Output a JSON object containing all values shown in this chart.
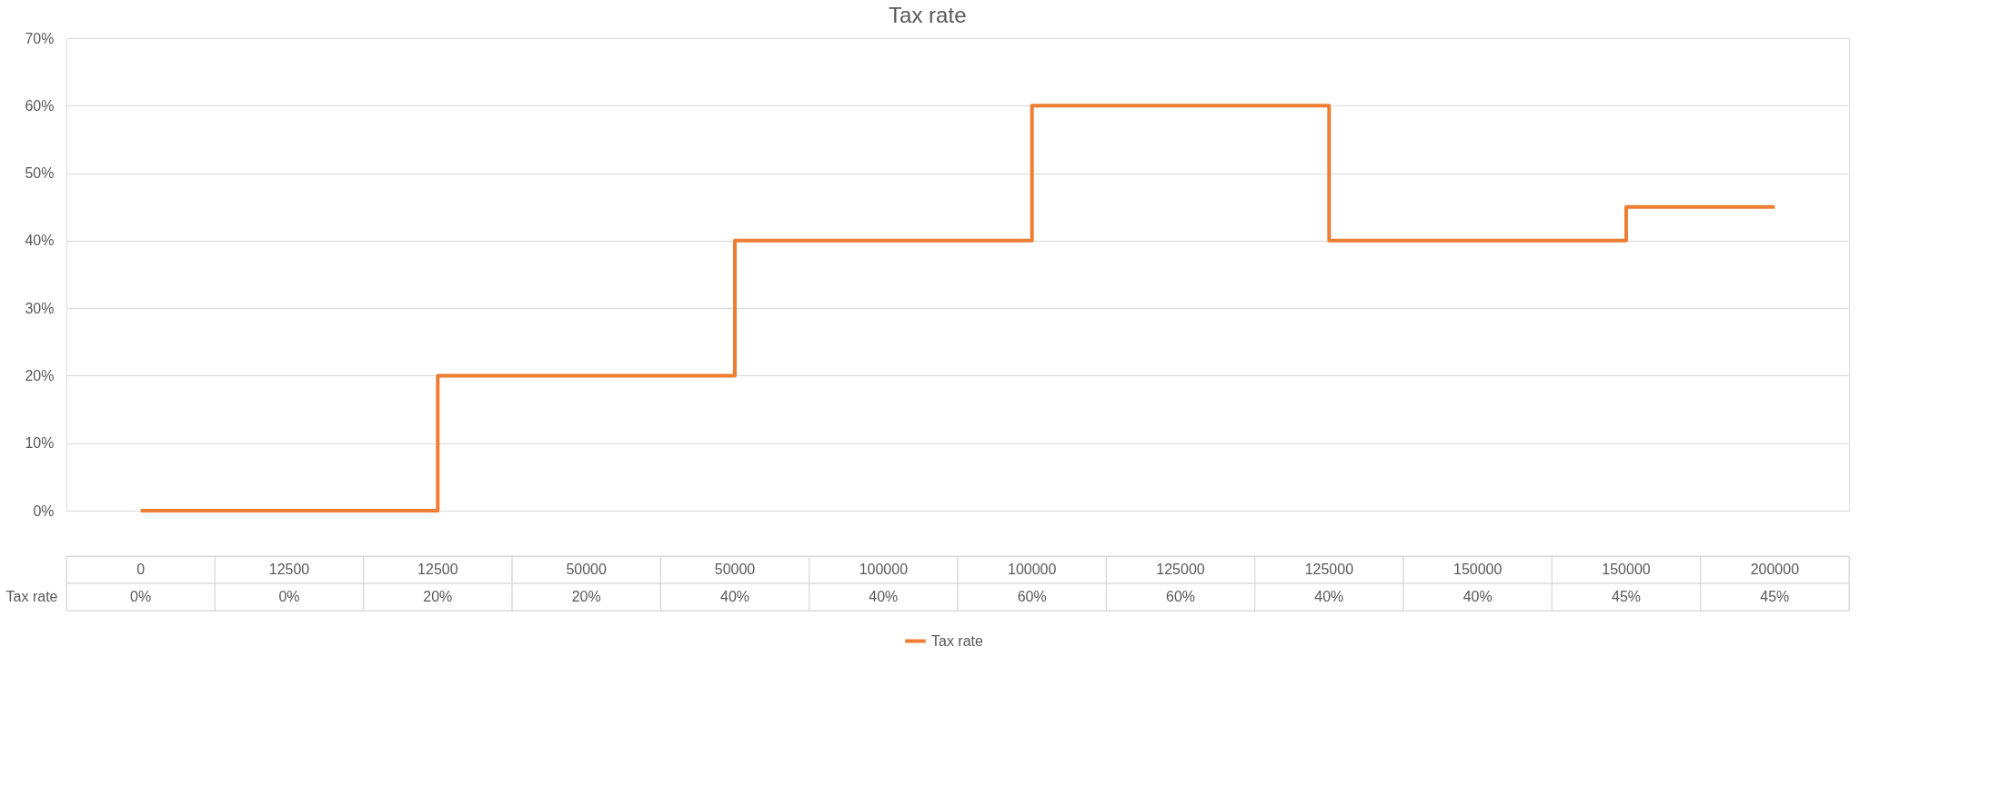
{
  "chart_data": {
    "type": "step",
    "title": "Tax rate",
    "categories": [
      "0",
      "12500",
      "12500",
      "50000",
      "50000",
      "100000",
      "100000",
      "125000",
      "125000",
      "150000",
      "150000",
      "200000"
    ],
    "series": [
      {
        "name": "Tax rate",
        "color": "#ed7d31",
        "values": [
          0,
          0,
          20,
          20,
          40,
          40,
          60,
          60,
          40,
          40,
          45,
          45
        ],
        "value_labels": [
          "0%",
          "0%",
          "20%",
          "20%",
          "40%",
          "40%",
          "60%",
          "60%",
          "40%",
          "40%",
          "45%",
          "45%"
        ]
      }
    ],
    "ylim": [
      0,
      70
    ],
    "yticks": [
      {
        "value": 0,
        "label": "0%"
      },
      {
        "value": 10,
        "label": "10%"
      },
      {
        "value": 20,
        "label": "20%"
      },
      {
        "value": 30,
        "label": "30%"
      },
      {
        "value": 40,
        "label": "40%"
      },
      {
        "value": 50,
        "label": "50%"
      },
      {
        "value": 60,
        "label": "60%"
      },
      {
        "value": 70,
        "label": "70%"
      }
    ],
    "grid": "y",
    "legend": "bottom"
  }
}
